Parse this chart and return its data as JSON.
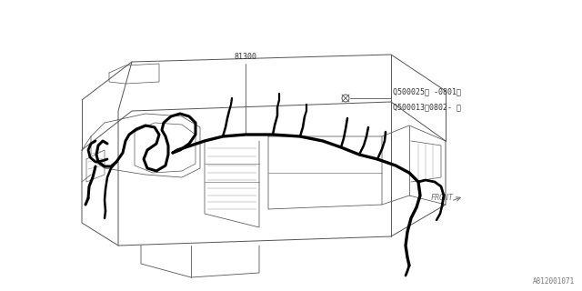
{
  "bg_color": "#ffffff",
  "panel_color": "#555555",
  "harness_color": "#000000",
  "label_81300": "81300",
  "label_q1": "Q500025（ -0801）",
  "label_q2": "Q500013（0802- ）",
  "label_front": "FRONT",
  "label_part_num": "A812001071",
  "ann_fs": 6,
  "front_fs": 6,
  "pn_fs": 5.5,
  "panel_lw": 0.6,
  "harness_lw": 2.5
}
